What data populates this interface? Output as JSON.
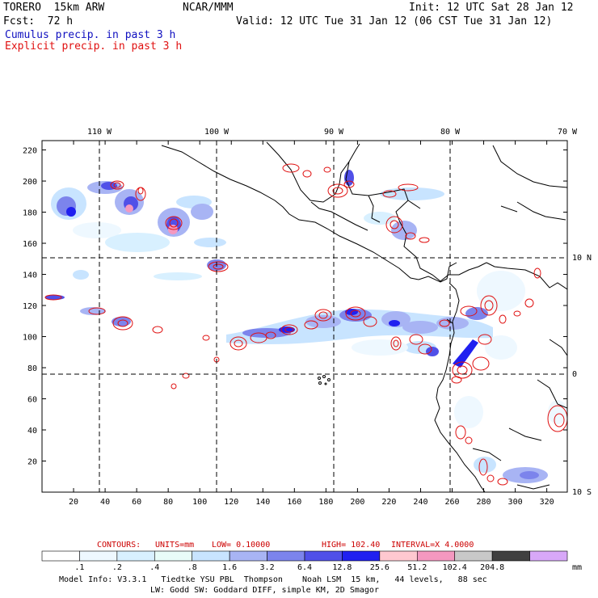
{
  "header": {
    "model": "TORERO  15km ARW",
    "org": "NCAR/MMM",
    "init": "Init: 12 UTC Sat 28 Jan 12",
    "fcst": "Fcst:  72 h",
    "valid": "Valid: 12 UTC Tue 31 Jan 12 (06 CST Tue 31 Jan 12)",
    "legend_cumulus": "Cumulus precip. in past 3 h",
    "legend_explicit": "Explicit precip. in past 3 h",
    "cumulus_color": "#1010c0",
    "explicit_color": "#e01010"
  },
  "axes": {
    "top_labels": [
      "110 W",
      "100 W",
      "90 W",
      "80 W",
      "70 W"
    ],
    "right_labels": [
      "10 N",
      "0",
      "10 S"
    ],
    "y_ticks": [
      20,
      40,
      60,
      80,
      100,
      120,
      140,
      160,
      180,
      200,
      220
    ],
    "x_ticks": [
      20,
      40,
      60,
      80,
      100,
      120,
      140,
      160,
      180,
      200,
      220,
      240,
      260,
      280,
      300,
      320
    ],
    "x_range": [
      0,
      333
    ],
    "y_range": [
      0,
      226
    ]
  },
  "contour_info": {
    "label": "CONTOURS:",
    "units": "UNITS=mm",
    "low": "LOW= 0.10000",
    "high": "HIGH=  102.40",
    "interval": "INTERVAL=X  4.0000"
  },
  "colorbar": {
    "bins": [
      "#ffffff",
      "#eef8ff",
      "#d8f0ff",
      "#e8fcf8",
      "#c8e4ff",
      "#a8b4f4",
      "#7c84ec",
      "#5050e8",
      "#2020f0",
      "#ffc8d0",
      "#f498c0",
      "#c8c8c8",
      "#404040",
      "#d8a8f8"
    ],
    "labels": [
      ".1",
      ".2",
      ".4",
      ".8",
      "1.6",
      "3.2",
      "6.4",
      "12.8",
      "25.6",
      "51.2",
      "102.4",
      "204.8"
    ],
    "units": "mm"
  },
  "footer": {
    "line1": "Model Info: V3.3.1   Tiedtke YSU PBL  Thompson    Noah LSM  15 km,   44 levels,   88 sec",
    "line2": "LW: Godd SW: Goddard DIFF, simple KM, 2D Smagor"
  }
}
